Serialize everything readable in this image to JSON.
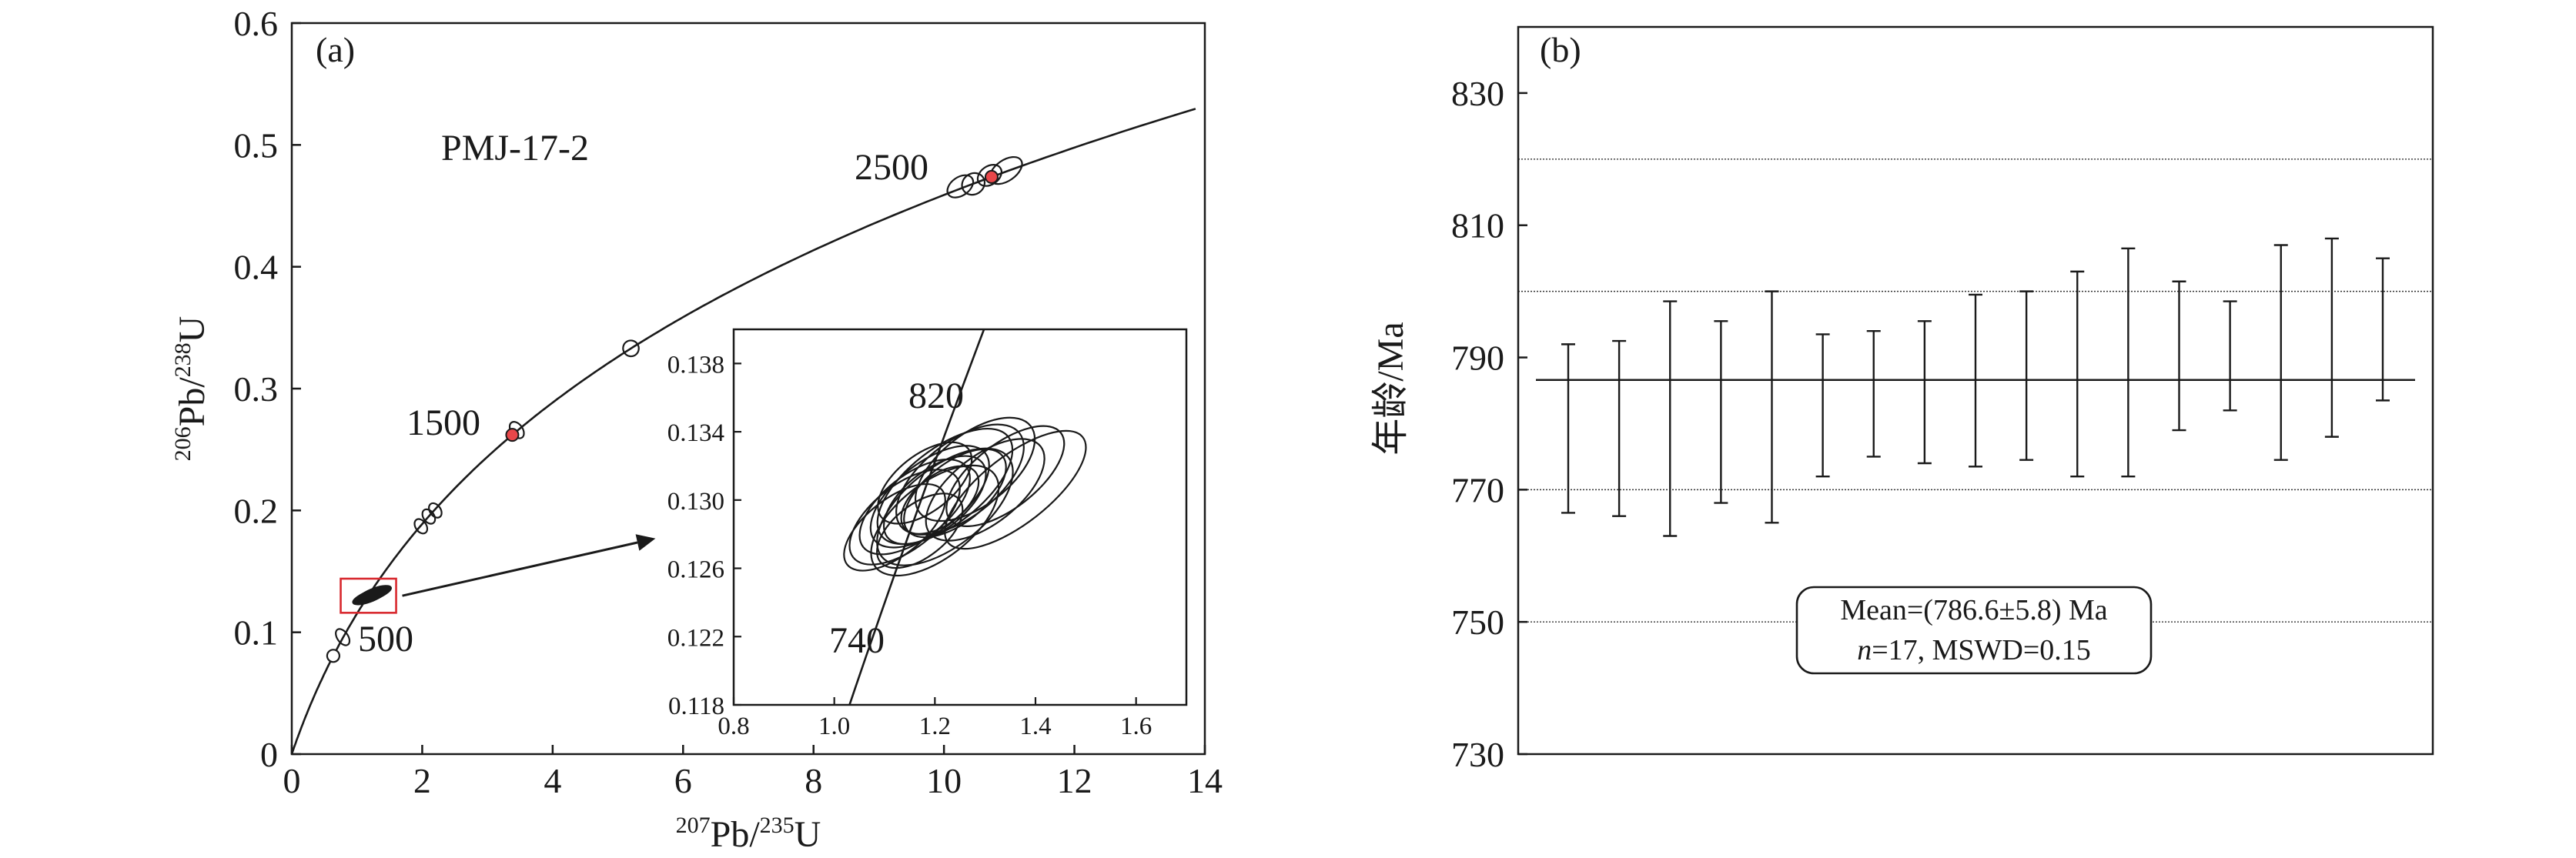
{
  "chart_data": [
    {
      "type": "scatter",
      "panel_label": "(a)",
      "sample_label": "PMJ-17-2",
      "xlabel": {
        "sup1": "207",
        "base1": "Pb/",
        "sup2": "235",
        "base2": "U"
      },
      "ylabel": {
        "sup1": "206",
        "base1": "Pb/",
        "sup2": "238",
        "base2": "U"
      },
      "xlim": [
        0,
        14
      ],
      "ylim": [
        0,
        0.6
      ],
      "x_ticks": [
        "0",
        "2",
        "4",
        "6",
        "8",
        "10",
        "12",
        "14"
      ],
      "y_ticks": [
        "0",
        "0.1",
        "0.2",
        "0.3",
        "0.4",
        "0.5",
        "0.6"
      ],
      "concordia_labels": [
        "500",
        "1500",
        "2500"
      ],
      "age_markers_Ma": [
        500,
        1500,
        2500
      ],
      "marker_color": "#e8474a",
      "box_color": "#d8282e",
      "ellipses": [
        {
          "x": 0.78,
          "y": 0.096,
          "rx": 0.05,
          "ry": 0.005
        },
        {
          "x": 1.98,
          "y": 0.187,
          "rx": 0.07,
          "ry": 0.004
        },
        {
          "x": 2.1,
          "y": 0.195,
          "rx": 0.07,
          "ry": 0.004
        },
        {
          "x": 2.2,
          "y": 0.2,
          "rx": 0.07,
          "ry": 0.004
        },
        {
          "x": 3.45,
          "y": 0.266,
          "rx": 0.09,
          "ry": 0.005
        },
        {
          "x": 5.2,
          "y": 0.333,
          "rx": 0.12,
          "ry": 0.004
        },
        {
          "x": 10.25,
          "y": 0.466,
          "rx": 0.22,
          "ry": 0.005
        },
        {
          "x": 10.45,
          "y": 0.468,
          "rx": 0.18,
          "ry": 0.006
        },
        {
          "x": 10.7,
          "y": 0.475,
          "rx": 0.2,
          "ry": 0.005
        },
        {
          "x": 10.95,
          "y": 0.479,
          "rx": 0.28,
          "ry": 0.006
        }
      ],
      "zoom_box": {
        "x0": 0.75,
        "x1": 1.6,
        "y0": 0.116,
        "y1": 0.144
      },
      "inset": {
        "xlim": [
          0.8,
          1.7
        ],
        "ylim": [
          0.118,
          0.14
        ],
        "x_ticks": [
          "0.8",
          "1.0",
          "1.2",
          "1.4",
          "1.6"
        ],
        "y_ticks": [
          "0.118",
          "0.122",
          "0.126",
          "0.130",
          "0.134",
          "0.138"
        ],
        "concordia_labels": [
          "820",
          "740"
        ],
        "ellipses": [
          {
            "x": 1.19,
            "y": 0.1302,
            "rx": 0.14,
            "ry": 0.0036
          },
          {
            "x": 1.22,
            "y": 0.1308,
            "rx": 0.16,
            "ry": 0.004
          },
          {
            "x": 1.16,
            "y": 0.1296,
            "rx": 0.13,
            "ry": 0.0034
          },
          {
            "x": 1.25,
            "y": 0.1312,
            "rx": 0.15,
            "ry": 0.004
          },
          {
            "x": 1.2,
            "y": 0.13,
            "rx": 0.12,
            "ry": 0.0032
          },
          {
            "x": 1.14,
            "y": 0.129,
            "rx": 0.13,
            "ry": 0.0034
          },
          {
            "x": 1.28,
            "y": 0.1318,
            "rx": 0.14,
            "ry": 0.0038
          },
          {
            "x": 1.22,
            "y": 0.1296,
            "rx": 0.16,
            "ry": 0.0042
          },
          {
            "x": 1.18,
            "y": 0.131,
            "rx": 0.11,
            "ry": 0.003
          },
          {
            "x": 1.24,
            "y": 0.1304,
            "rx": 0.12,
            "ry": 0.0032
          },
          {
            "x": 1.12,
            "y": 0.1284,
            "rx": 0.12,
            "ry": 0.003
          },
          {
            "x": 1.3,
            "y": 0.1306,
            "rx": 0.14,
            "ry": 0.0036
          },
          {
            "x": 1.2,
            "y": 0.1288,
            "rx": 0.15,
            "ry": 0.004
          },
          {
            "x": 1.34,
            "y": 0.1314,
            "rx": 0.14,
            "ry": 0.0034
          },
          {
            "x": 1.36,
            "y": 0.1306,
            "rx": 0.17,
            "ry": 0.0036
          },
          {
            "x": 1.21,
            "y": 0.13,
            "rx": 0.09,
            "ry": 0.0026
          },
          {
            "x": 1.17,
            "y": 0.1282,
            "rx": 0.1,
            "ry": 0.0028
          }
        ]
      }
    },
    {
      "type": "bar",
      "panel_label": "(b)",
      "ylabel": "年龄/Ma",
      "ylim": [
        730,
        840
      ],
      "y_ticks": [
        "730",
        "750",
        "770",
        "790",
        "810",
        "830"
      ],
      "grid_lines": [
        750,
        770,
        800,
        820
      ],
      "mean_line": 786.6,
      "mean_text": "Mean=(786.6±5.8) Ma",
      "stats_text": {
        "n_label": "n",
        "rest": "=17, MSWD=0.15"
      },
      "error_bars": [
        {
          "low": 766.5,
          "high": 792.0
        },
        {
          "low": 766.0,
          "high": 792.5
        },
        {
          "low": 763.0,
          "high": 798.5
        },
        {
          "low": 768.0,
          "high": 795.5
        },
        {
          "low": 765.0,
          "high": 800.0
        },
        {
          "low": 772.0,
          "high": 793.5
        },
        {
          "low": 775.0,
          "high": 794.0
        },
        {
          "low": 774.0,
          "high": 795.5
        },
        {
          "low": 773.5,
          "high": 799.5
        },
        {
          "low": 774.5,
          "high": 800.0
        },
        {
          "low": 772.0,
          "high": 803.0
        },
        {
          "low": 772.0,
          "high": 806.5
        },
        {
          "low": 779.0,
          "high": 801.5
        },
        {
          "low": 782.0,
          "high": 798.5
        },
        {
          "low": 774.5,
          "high": 807.0
        },
        {
          "low": 778.0,
          "high": 808.0
        },
        {
          "low": 783.5,
          "high": 805.0
        }
      ]
    }
  ]
}
